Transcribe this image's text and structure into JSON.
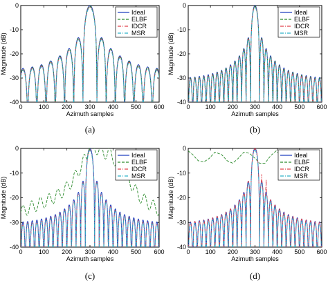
{
  "chart_data": [
    {
      "type": "line",
      "caption": "(a)",
      "xlabel": "Azimuth samples",
      "ylabel": "Magnitude (dB)",
      "xlim": [
        0,
        600
      ],
      "ylim": [
        -40,
        0
      ],
      "xticks": [
        0,
        100,
        200,
        300,
        400,
        500,
        600
      ],
      "yticks": [
        0,
        -10,
        -20,
        -30,
        -40
      ],
      "legend_position": "top-right",
      "series": [
        {
          "name": "Ideal",
          "color": "#1f3fbf",
          "dash": "solid"
        },
        {
          "name": "ELBF",
          "color": "#2a8a2a",
          "dash": "dashed"
        },
        {
          "name": "IDCR",
          "color": "#e0404a",
          "dash": "dashdot"
        },
        {
          "name": "MSR",
          "color": "#2ab0c8",
          "dash": "dashdot"
        }
      ],
      "main_lobe": {
        "center": 300,
        "half_width": 30,
        "peak": 0
      },
      "sidelobes": {
        "spacing": 40,
        "peaks": [
          {
            "x": 250,
            "y": -13.3
          },
          {
            "x": 210,
            "y": -17.8
          },
          {
            "x": 170,
            "y": -20.8
          },
          {
            "x": 130,
            "y": -22.9
          },
          {
            "x": 90,
            "y": -24.5
          },
          {
            "x": 50,
            "y": -25.4
          },
          {
            "x": 10,
            "y": -26.0
          }
        ]
      }
    },
    {
      "type": "line",
      "caption": "(b)",
      "xlabel": "Azimuth samples",
      "ylabel": "Magnitude (dB)",
      "xlim": [
        0,
        600
      ],
      "ylim": [
        -40,
        0
      ],
      "xticks": [
        0,
        100,
        200,
        300,
        400,
        500,
        600
      ],
      "yticks": [
        0,
        -10,
        -20,
        -30,
        -40
      ],
      "legend_position": "top-right",
      "series": [
        {
          "name": "Ideal",
          "color": "#1f3fbf",
          "dash": "solid"
        },
        {
          "name": "ELBF",
          "color": "#2a8a2a",
          "dash": "dashed"
        },
        {
          "name": "IDCR",
          "color": "#e0404a",
          "dash": "dashdot"
        },
        {
          "name": "MSR",
          "color": "#2ab0c8",
          "dash": "dashdot"
        }
      ],
      "main_lobe": {
        "center": 300,
        "half_width": 20,
        "peak": 0
      },
      "sidelobes": {
        "spacing": 20,
        "peaks": [
          {
            "x": 270,
            "y": -13.3
          },
          {
            "x": 250,
            "y": -17.8
          },
          {
            "x": 230,
            "y": -20.8
          },
          {
            "x": 210,
            "y": -22.9
          },
          {
            "x": 190,
            "y": -24.5
          },
          {
            "x": 170,
            "y": -25.8
          },
          {
            "x": 150,
            "y": -26.8
          },
          {
            "x": 130,
            "y": -27.5
          },
          {
            "x": 110,
            "y": -28.1
          },
          {
            "x": 90,
            "y": -28.6
          },
          {
            "x": 70,
            "y": -29.0
          },
          {
            "x": 50,
            "y": -29.3
          },
          {
            "x": 30,
            "y": -29.6
          },
          {
            "x": 10,
            "y": -29.8
          }
        ]
      }
    },
    {
      "type": "line",
      "caption": "(c)",
      "xlabel": "Azimuth samples",
      "ylabel": "Magnitude (dB)",
      "xlim": [
        0,
        600
      ],
      "ylim": [
        -40,
        0
      ],
      "xticks": [
        0,
        100,
        200,
        300,
        400,
        500,
        600
      ],
      "yticks": [
        0,
        -10,
        -20,
        -30,
        -40
      ],
      "legend_position": "top-right",
      "series": [
        {
          "name": "Ideal",
          "color": "#1f3fbf",
          "dash": "solid"
        },
        {
          "name": "ELBF",
          "color": "#2a8a2a",
          "dash": "dashed"
        },
        {
          "name": "IDCR",
          "color": "#e0404a",
          "dash": "dashdot"
        },
        {
          "name": "MSR",
          "color": "#2ab0c8",
          "dash": "dashdot"
        }
      ],
      "main_lobe": {
        "center": 300,
        "half_width": 20,
        "peak": 0
      },
      "sidelobes": {
        "spacing": 20,
        "peaks": [
          {
            "x": 270,
            "y": -13.3
          },
          {
            "x": 250,
            "y": -17.8
          },
          {
            "x": 230,
            "y": -20.8
          },
          {
            "x": 210,
            "y": -22.9
          },
          {
            "x": 190,
            "y": -24.5
          },
          {
            "x": 170,
            "y": -25.8
          },
          {
            "x": 150,
            "y": -26.8
          },
          {
            "x": 130,
            "y": -27.5
          },
          {
            "x": 110,
            "y": -28.1
          },
          {
            "x": 90,
            "y": -28.6
          },
          {
            "x": 70,
            "y": -29.0
          },
          {
            "x": 50,
            "y": -29.3
          },
          {
            "x": 30,
            "y": -29.6
          },
          {
            "x": 10,
            "y": -29.8
          }
        ]
      },
      "elbf_envelope": [
        {
          "x": 0,
          "y": -26
        },
        {
          "x": 40,
          "y": -24
        },
        {
          "x": 80,
          "y": -22.5
        },
        {
          "x": 120,
          "y": -21
        },
        {
          "x": 160,
          "y": -19
        },
        {
          "x": 200,
          "y": -16
        },
        {
          "x": 240,
          "y": -11
        },
        {
          "x": 280,
          "y": -4
        },
        {
          "x": 300,
          "y": -1
        },
        {
          "x": 330,
          "y": 0
        },
        {
          "x": 360,
          "y": -2
        },
        {
          "x": 380,
          "y": -1.5
        },
        {
          "x": 410,
          "y": -5
        },
        {
          "x": 440,
          "y": -8
        },
        {
          "x": 470,
          "y": -13
        },
        {
          "x": 510,
          "y": -19
        },
        {
          "x": 550,
          "y": -22
        },
        {
          "x": 600,
          "y": -25
        }
      ]
    },
    {
      "type": "line",
      "caption": "(d)",
      "xlabel": "Azimuth samples",
      "ylabel": "Magnitude (dB)",
      "xlim": [
        0,
        600
      ],
      "ylim": [
        -40,
        0
      ],
      "xticks": [
        0,
        100,
        200,
        300,
        400,
        500,
        600
      ],
      "yticks": [
        0,
        -10,
        -20,
        -30,
        -40
      ],
      "legend_position": "top-right",
      "series": [
        {
          "name": "Ideal",
          "color": "#1f3fbf",
          "dash": "solid"
        },
        {
          "name": "ELBF",
          "color": "#2a8a2a",
          "dash": "dashed"
        },
        {
          "name": "IDCR",
          "color": "#e0404a",
          "dash": "dashdot"
        },
        {
          "name": "MSR",
          "color": "#2ab0c8",
          "dash": "dashdot"
        }
      ],
      "main_lobe": {
        "center": 300,
        "half_width": 20,
        "peak": 0
      },
      "sidelobes": {
        "spacing": 20,
        "peaks": [
          {
            "x": 270,
            "y": -13.3
          },
          {
            "x": 250,
            "y": -17.8
          },
          {
            "x": 230,
            "y": -20.8
          },
          {
            "x": 210,
            "y": -22.9
          },
          {
            "x": 190,
            "y": -24.5
          },
          {
            "x": 170,
            "y": -25.8
          },
          {
            "x": 150,
            "y": -26.8
          },
          {
            "x": 130,
            "y": -27.5
          },
          {
            "x": 110,
            "y": -28.1
          },
          {
            "x": 90,
            "y": -28.6
          },
          {
            "x": 70,
            "y": -29.0
          },
          {
            "x": 50,
            "y": -29.3
          },
          {
            "x": 30,
            "y": -29.6
          },
          {
            "x": 10,
            "y": -29.8
          }
        ]
      },
      "elbf_envelope": [
        {
          "x": 0,
          "y": -1
        },
        {
          "x": 20,
          "y": -2.5
        },
        {
          "x": 45,
          "y": -5
        },
        {
          "x": 70,
          "y": -5.5
        },
        {
          "x": 95,
          "y": -4
        },
        {
          "x": 120,
          "y": -1.5
        },
        {
          "x": 150,
          "y": -2.5
        },
        {
          "x": 175,
          "y": -5
        },
        {
          "x": 200,
          "y": -6
        },
        {
          "x": 225,
          "y": -4
        },
        {
          "x": 250,
          "y": -1.5
        },
        {
          "x": 275,
          "y": -2
        },
        {
          "x": 300,
          "y": -4
        },
        {
          "x": 320,
          "y": -6
        },
        {
          "x": 345,
          "y": -6
        },
        {
          "x": 370,
          "y": -3
        },
        {
          "x": 395,
          "y": -1
        },
        {
          "x": 420,
          "y": -3
        },
        {
          "x": 445,
          "y": -6
        }
      ],
      "idcr_extra_peaks": [
        {
          "x": 330,
          "y": -10.5
        },
        {
          "x": 350,
          "y": -12.5
        }
      ]
    }
  ]
}
